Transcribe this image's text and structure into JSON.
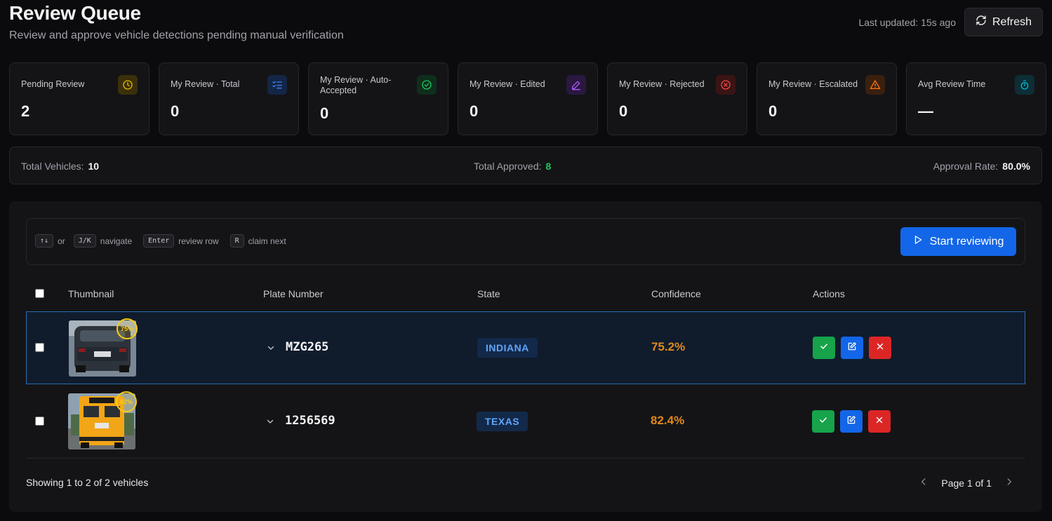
{
  "header": {
    "title": "Review Queue",
    "subtitle": "Review and approve vehicle detections pending manual verification",
    "last_updated": "Last updated: 15s ago",
    "refresh_label": "Refresh"
  },
  "stats": [
    {
      "label": "Pending Review",
      "value": "2",
      "icon": "clock-icon",
      "color": "#eab308"
    },
    {
      "label": "My Review · Total",
      "value": "0",
      "icon": "list-checks-icon",
      "color": "#3b82f6"
    },
    {
      "label": "My Review · Auto-Accepted",
      "value": "0",
      "icon": "check-circle-icon",
      "color": "#22c55e"
    },
    {
      "label": "My Review · Edited",
      "value": "0",
      "icon": "pencil-icon",
      "color": "#a855f7"
    },
    {
      "label": "My Review · Rejected",
      "value": "0",
      "icon": "x-circle-icon",
      "color": "#ef4444"
    },
    {
      "label": "My Review · Escalated",
      "value": "0",
      "icon": "alert-triangle-icon",
      "color": "#f97316"
    },
    {
      "label": "Avg Review Time",
      "value": "—",
      "icon": "timer-icon",
      "color": "#06b6d4"
    }
  ],
  "summary": {
    "total_vehicles_label": "Total Vehicles:",
    "total_vehicles": "10",
    "total_approved_label": "Total Approved:",
    "total_approved": "8",
    "approval_rate_label": "Approval Rate:",
    "approval_rate": "80.0%"
  },
  "shortcuts": {
    "nav_keys": "↑↓",
    "or": "or",
    "alt_nav_keys": "J/K",
    "navigate": "navigate",
    "enter_key": "Enter",
    "review_row": "review row",
    "claim_key": "R",
    "claim_next": "claim next",
    "start_label": "Start reviewing"
  },
  "table": {
    "columns": [
      "Thumbnail",
      "Plate Number",
      "State",
      "Confidence",
      "Actions"
    ],
    "rows": [
      {
        "plate": "MZG265",
        "state": "INDIANA",
        "confidence": "75.2%",
        "thumb_badge": "75%",
        "selected": true
      },
      {
        "plate": "1256569",
        "state": "TEXAS",
        "confidence": "82.4%",
        "thumb_badge": "82%",
        "selected": false
      }
    ]
  },
  "footer": {
    "showing": "Showing 1 to 2 of 2 vehicles",
    "page": "Page 1 of 1"
  },
  "colors": {
    "accent": "#1366e8",
    "approve": "#16a34a",
    "reject": "#dc2626",
    "confidence": "#e08a1c",
    "approved_green": "#22c55e"
  }
}
